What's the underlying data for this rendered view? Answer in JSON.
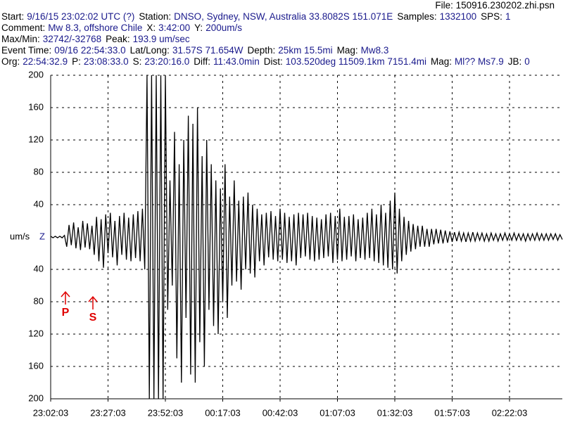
{
  "header": {
    "file": "File: 150916.230202.zhi.psn",
    "lines": [
      [
        {
          "label": "Start:",
          "value": "9/16/15 23:02:02 UTC (?)"
        },
        {
          "label": "Station:",
          "value": "DNSO, Sydney, NSW, Australia 33.8082S 151.071E"
        },
        {
          "label": "Samples:",
          "value": "1332100"
        },
        {
          "label": "SPS:",
          "value": "1"
        }
      ],
      [
        {
          "label": "Comment:",
          "value": "Mw 8.3, offshore Chile"
        },
        {
          "label": "X:",
          "value": "3:42:00"
        },
        {
          "label": "Y:",
          "value": "200um/s"
        }
      ],
      [
        {
          "label": "Max/Min:",
          "value": "32742/-32768"
        },
        {
          "label": "Peak:",
          "value": "193.9 um/sec"
        }
      ],
      [
        {
          "label": "Event Time:",
          "value": "09/16 22:54:33.0"
        },
        {
          "label": "Lat/Long:",
          "value": "31.57S 71.654W"
        },
        {
          "label": "Depth:",
          "value": "25km 15.5mi"
        },
        {
          "label": "Mag:",
          "value": "Mw8.3"
        }
      ],
      [
        {
          "label": "Org:",
          "value": "22:54:32.9"
        },
        {
          "label": "P:",
          "value": "23:08:33.0"
        },
        {
          "label": "S:",
          "value": "23:20:16.0"
        },
        {
          "label": "Diff:",
          "value": "11:43.0min"
        },
        {
          "label": "Dist:",
          "value": "103.520deg 11509.1km 7151.4mi"
        },
        {
          "label": "Mag:",
          "value": "Ml?? Ms7.9"
        },
        {
          "label": "JB:",
          "value": "0"
        }
      ]
    ]
  },
  "chart_data": {
    "type": "line",
    "y_label": "um/s",
    "component": "Z",
    "color": "#000000",
    "annotations": [
      "P",
      "S"
    ],
    "xlim": [
      0,
      223
    ],
    "ylim": [
      -200,
      200
    ],
    "xticks": [
      {
        "value": 0,
        "label": "23:02:03"
      },
      {
        "value": 25,
        "label": "23:27:03"
      },
      {
        "value": 50,
        "label": "23:52:03"
      },
      {
        "value": 75,
        "label": "00:17:03"
      },
      {
        "value": 100,
        "label": "00:42:03"
      },
      {
        "value": 125,
        "label": "01:07:03"
      },
      {
        "value": 150,
        "label": "01:32:03"
      },
      {
        "value": 175,
        "label": "01:57:03"
      },
      {
        "value": 200,
        "label": "02:22:03"
      }
    ],
    "yticks": [
      200,
      160,
      120,
      80,
      40,
      {
        "value": -40,
        "label": "40"
      },
      {
        "value": -80,
        "label": "80"
      },
      {
        "value": -120,
        "label": "120"
      },
      {
        "value": -160,
        "label": "160"
      },
      {
        "value": -200,
        "label": "200"
      }
    ],
    "grid": true,
    "x": [
      0,
      1,
      2,
      3,
      4,
      5,
      6,
      7,
      8,
      9,
      10,
      11,
      12,
      13,
      14,
      15,
      16,
      17,
      18,
      19,
      20,
      21,
      22,
      23,
      24,
      25,
      26,
      27,
      28,
      29,
      30,
      31,
      32,
      33,
      34,
      35,
      36,
      37,
      38,
      39,
      40,
      41,
      42,
      43,
      44,
      45,
      46,
      47,
      48,
      49,
      50,
      51,
      52,
      53,
      54,
      55,
      56,
      57,
      58,
      59,
      60,
      61,
      62,
      63,
      64,
      65,
      66,
      67,
      68,
      69,
      70,
      71,
      72,
      73,
      74,
      75,
      76,
      77,
      78,
      79,
      80,
      81,
      82,
      83,
      84,
      85,
      86,
      87,
      88,
      89,
      90,
      91,
      92,
      93,
      94,
      95,
      96,
      97,
      98,
      99,
      100,
      101,
      102,
      103,
      104,
      105,
      106,
      107,
      108,
      109,
      110,
      111,
      112,
      113,
      114,
      115,
      116,
      117,
      118,
      119,
      120,
      121,
      122,
      123,
      124,
      125,
      126,
      127,
      128,
      129,
      130,
      131,
      132,
      133,
      134,
      135,
      136,
      137,
      138,
      139,
      140,
      141,
      142,
      143,
      144,
      145,
      146,
      147,
      148,
      149,
      150,
      151,
      152,
      153,
      154,
      155,
      156,
      157,
      158,
      159,
      160,
      161,
      162,
      163,
      164,
      165,
      166,
      167,
      168,
      169,
      170,
      171,
      172,
      173,
      174,
      175,
      176,
      177,
      178,
      179,
      180,
      181,
      182,
      183,
      184,
      185,
      186,
      187,
      188,
      189,
      190,
      191,
      192,
      193,
      194,
      195,
      196,
      197,
      198,
      199,
      200,
      201,
      202,
      203,
      204,
      205,
      206,
      207,
      208,
      209,
      210,
      211,
      212,
      213,
      214,
      215,
      216,
      217,
      218,
      219,
      220,
      221,
      222,
      223
    ],
    "values": [
      1,
      -1,
      1,
      -1,
      1,
      -1,
      2,
      -12,
      15,
      -10,
      18,
      -14,
      12,
      -16,
      20,
      -13,
      17,
      -15,
      14,
      -22,
      25,
      -30,
      22,
      -38,
      28,
      -20,
      30,
      -25,
      20,
      -35,
      26,
      -22,
      30,
      -28,
      24,
      -30,
      28,
      -26,
      32,
      -30,
      35,
      -40,
      200,
      -200,
      200,
      -200,
      200,
      -200,
      200,
      -200,
      200,
      -90,
      70,
      -60,
      130,
      -150,
      90,
      -180,
      120,
      -100,
      150,
      -170,
      140,
      -180,
      160,
      -130,
      100,
      -160,
      120,
      -90,
      90,
      -110,
      70,
      -120,
      60,
      -80,
      90,
      -100,
      50,
      -60,
      70,
      -55,
      45,
      -65,
      50,
      -40,
      55,
      -45,
      40,
      -50,
      35,
      -30,
      28,
      -35,
      30,
      -25,
      32,
      -28,
      26,
      -30,
      35,
      -28,
      30,
      -32,
      25,
      -30,
      28,
      -35,
      30,
      -26,
      28,
      -24,
      30,
      -28,
      26,
      -30,
      24,
      -28,
      22,
      -26,
      28,
      -24,
      30,
      -32,
      26,
      -28,
      35,
      -30,
      25,
      -28,
      26,
      -24,
      28,
      -30,
      22,
      -26,
      24,
      -28,
      30,
      -26,
      35,
      -30,
      28,
      -32,
      40,
      -35,
      30,
      -38,
      45,
      -40,
      55,
      -45,
      35,
      -30,
      25,
      -22,
      20,
      -18,
      16,
      -15,
      14,
      -12,
      14,
      -12,
      10,
      -12,
      10,
      -9,
      10,
      -8,
      9,
      -8,
      8,
      -7,
      7,
      -6,
      6,
      -5,
      6,
      -5,
      5,
      -6,
      5,
      -5,
      6,
      -5,
      5,
      -4,
      5,
      -5,
      4,
      -5,
      5,
      -4,
      4,
      -5,
      4,
      -4,
      5,
      -4,
      4,
      -4,
      5,
      -4,
      4,
      -4,
      4,
      -5,
      4,
      -4,
      4,
      -4,
      5,
      -4,
      4,
      -4,
      4,
      -4,
      4,
      -3,
      4,
      -4,
      3,
      -3
    ]
  }
}
